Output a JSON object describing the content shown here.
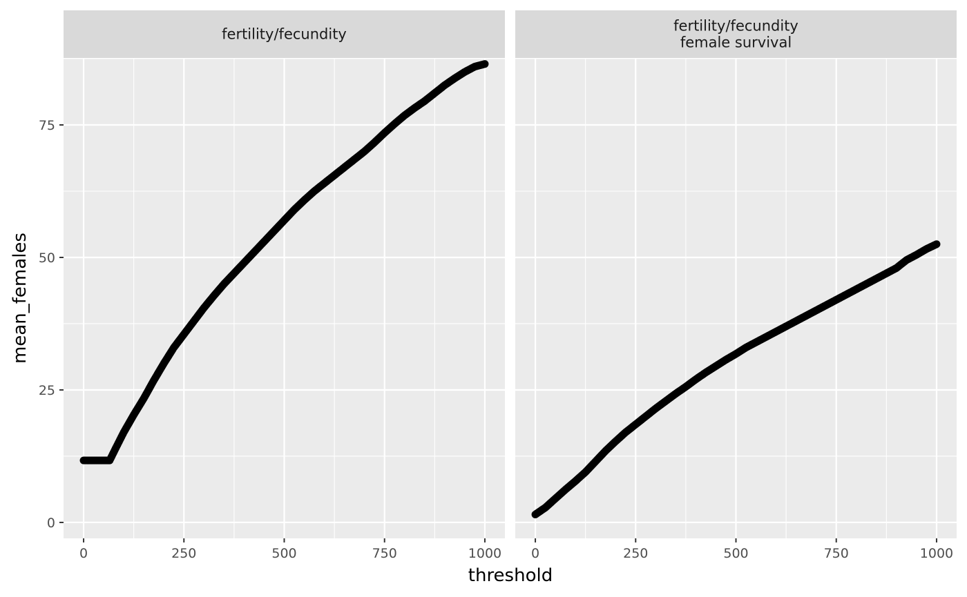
{
  "chart_data": {
    "type": "scatter",
    "xlabel": "threshold",
    "ylabel": "mean_females",
    "xlim": [
      -50,
      1050
    ],
    "ylim": [
      -3,
      87.5
    ],
    "x_ticks": [
      0,
      250,
      500,
      750,
      1000
    ],
    "x_tick_labels": [
      "0",
      "250",
      "500",
      "750",
      "1000"
    ],
    "y_ticks": [
      0,
      25,
      50,
      75
    ],
    "y_tick_labels": [
      "0",
      "25",
      "50",
      "75"
    ],
    "grid": true,
    "facets": [
      {
        "strip": [
          "fertility/fecundity"
        ],
        "points": [
          [
            0,
            11.7
          ],
          [
            20,
            11.7
          ],
          [
            40,
            11.7
          ],
          [
            60,
            11.7
          ],
          [
            65,
            11.7
          ],
          [
            80,
            14.0
          ],
          [
            100,
            17.0
          ],
          [
            125,
            20.3
          ],
          [
            150,
            23.4
          ],
          [
            175,
            26.8
          ],
          [
            200,
            30.0
          ],
          [
            225,
            33.0
          ],
          [
            250,
            35.5
          ],
          [
            275,
            38.0
          ],
          [
            300,
            40.5
          ],
          [
            325,
            42.8
          ],
          [
            350,
            45.0
          ],
          [
            375,
            47.0
          ],
          [
            400,
            49.0
          ],
          [
            425,
            51.0
          ],
          [
            450,
            53.0
          ],
          [
            475,
            55.0
          ],
          [
            500,
            57.0
          ],
          [
            525,
            59.0
          ],
          [
            550,
            60.8
          ],
          [
            575,
            62.5
          ],
          [
            600,
            64.0
          ],
          [
            625,
            65.5
          ],
          [
            650,
            67.0
          ],
          [
            675,
            68.5
          ],
          [
            700,
            70.0
          ],
          [
            725,
            71.7
          ],
          [
            750,
            73.5
          ],
          [
            775,
            75.2
          ],
          [
            800,
            76.8
          ],
          [
            825,
            78.2
          ],
          [
            850,
            79.5
          ],
          [
            875,
            81.0
          ],
          [
            900,
            82.5
          ],
          [
            925,
            83.8
          ],
          [
            950,
            85.0
          ],
          [
            975,
            86.0
          ],
          [
            1000,
            86.5
          ]
        ]
      },
      {
        "strip": [
          "fertility/fecundity",
          "female survival"
        ],
        "points": [
          [
            0,
            1.5
          ],
          [
            25,
            2.8
          ],
          [
            50,
            4.5
          ],
          [
            75,
            6.2
          ],
          [
            100,
            7.8
          ],
          [
            125,
            9.5
          ],
          [
            150,
            11.5
          ],
          [
            175,
            13.5
          ],
          [
            200,
            15.3
          ],
          [
            225,
            17.0
          ],
          [
            250,
            18.5
          ],
          [
            275,
            20.0
          ],
          [
            300,
            21.5
          ],
          [
            325,
            22.9
          ],
          [
            350,
            24.3
          ],
          [
            375,
            25.6
          ],
          [
            400,
            27.0
          ],
          [
            425,
            28.3
          ],
          [
            450,
            29.5
          ],
          [
            475,
            30.7
          ],
          [
            500,
            31.8
          ],
          [
            525,
            33.0
          ],
          [
            550,
            34.0
          ],
          [
            575,
            35.0
          ],
          [
            600,
            36.0
          ],
          [
            625,
            37.0
          ],
          [
            650,
            38.0
          ],
          [
            675,
            39.0
          ],
          [
            700,
            40.0
          ],
          [
            725,
            41.0
          ],
          [
            750,
            42.0
          ],
          [
            775,
            43.0
          ],
          [
            800,
            44.0
          ],
          [
            825,
            45.0
          ],
          [
            850,
            46.0
          ],
          [
            875,
            47.0
          ],
          [
            900,
            48.0
          ],
          [
            925,
            49.5
          ],
          [
            950,
            50.5
          ],
          [
            975,
            51.6
          ],
          [
            1000,
            52.5
          ]
        ]
      }
    ]
  }
}
